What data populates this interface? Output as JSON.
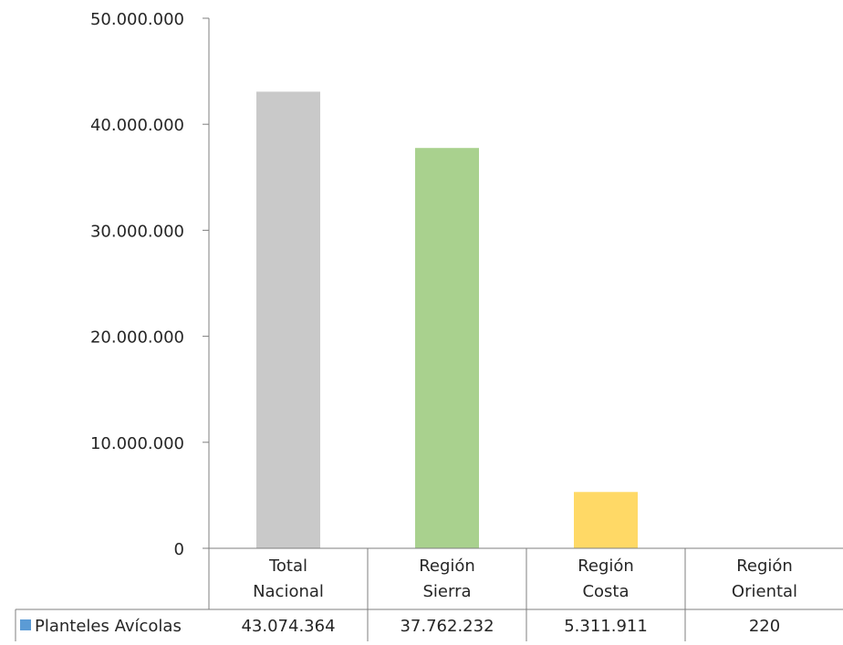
{
  "chart_data": {
    "type": "bar",
    "categories": [
      [
        "Total",
        "Nacional"
      ],
      [
        "Región",
        "Sierra"
      ],
      [
        "Región",
        "Costa"
      ],
      [
        "Región",
        "Oriental"
      ]
    ],
    "series": [
      {
        "name": "Planteles Avícolas",
        "values": [
          43074364,
          37762232,
          5311911,
          220
        ],
        "value_labels": [
          "43.074.364",
          "37.762.232",
          "5.311.911",
          "220"
        ],
        "bar_colors": [
          "#c9c9c9",
          "#a9d18e",
          "#ffd966",
          "#ffd966"
        ],
        "legend_color": "#5b9bd5"
      }
    ],
    "ylim": [
      0,
      50000000
    ],
    "yticks": [
      0,
      10000000,
      20000000,
      30000000,
      40000000,
      50000000
    ],
    "ytick_labels": [
      "0",
      "10.000.000",
      "20.000.000",
      "30.000.000",
      "40.000.000",
      "50.000.000"
    ],
    "title": "",
    "xlabel": "",
    "ylabel": "",
    "grid": false,
    "legend": "data-table",
    "axis_color": "#7f7f7f"
  }
}
